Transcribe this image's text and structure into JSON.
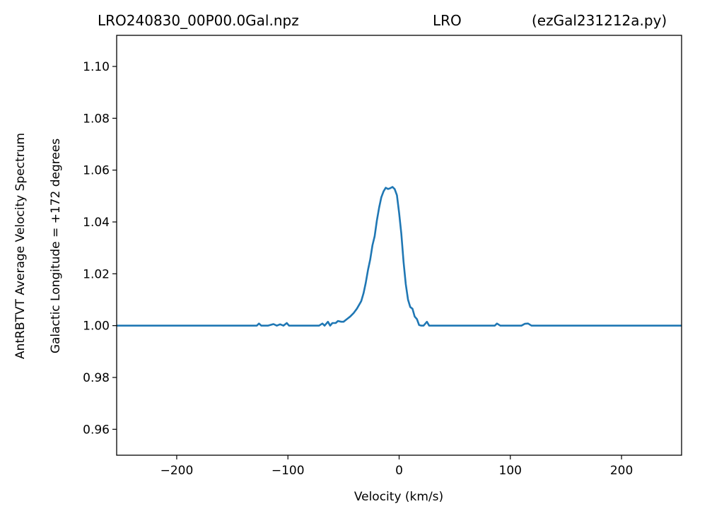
{
  "title": {
    "left": "LRO240830_00P00.0Gal.npz",
    "center": "LRO",
    "right": "(ezGal231212a.py)"
  },
  "chart_data": {
    "type": "line",
    "title": "LRO240830_00P00.0Gal.npz LRO (ezGal231212a.py)",
    "xlabel": "Velocity (km/s)",
    "ylabel": "AntRBTVT Average Velocity Spectrum",
    "ylabel2": "Galactic Longitude = +172 degrees",
    "xlim": [
      -254,
      254
    ],
    "ylim": [
      0.95,
      1.112
    ],
    "xticks": [
      -200,
      -100,
      0,
      100,
      200
    ],
    "xtick_labels": [
      "−200",
      "−100",
      "0",
      "100",
      "200"
    ],
    "yticks": [
      0.96,
      0.98,
      1.0,
      1.02,
      1.04,
      1.06,
      1.08,
      1.1
    ],
    "ytick_labels": [
      "0.96",
      "0.98",
      "1.00",
      "1.02",
      "1.04",
      "1.06",
      "1.08",
      "1.10"
    ],
    "grid": false,
    "line_color": "#1f77b4",
    "series": [
      {
        "x": [
          -254,
          -128,
          -126,
          -124,
          -118,
          -113,
          -110,
          -107,
          -104,
          -101,
          -99,
          -95,
          -72,
          -69,
          -67,
          -64,
          -62,
          -60,
          -57,
          -55,
          -52,
          -50,
          -47,
          -44,
          -41,
          -38,
          -36,
          -34,
          -32,
          -30,
          -28,
          -26,
          -24,
          -22,
          -20,
          -18,
          -16,
          -14,
          -12,
          -10,
          -8,
          -6,
          -4,
          -2,
          0,
          2,
          4,
          6,
          8,
          10,
          12,
          14,
          16,
          18,
          20,
          22,
          25,
          27,
          29,
          32,
          36,
          60,
          86,
          88,
          91,
          110,
          113,
          116,
          119,
          254
        ],
        "y": [
          1.0,
          1.0,
          1.0008,
          1.0,
          1.0,
          1.0006,
          1.0,
          1.0005,
          1.0,
          1.001,
          1.0,
          1.0,
          1.0,
          1.0008,
          1.0,
          1.0015,
          1.0,
          1.001,
          1.001,
          1.0018,
          1.0015,
          1.0015,
          1.0025,
          1.0035,
          1.0048,
          1.0065,
          1.008,
          1.0095,
          1.0125,
          1.0165,
          1.0215,
          1.0255,
          1.031,
          1.0345,
          1.0405,
          1.0455,
          1.0495,
          1.0518,
          1.0532,
          1.0527,
          1.053,
          1.0535,
          1.0527,
          1.0503,
          1.0435,
          1.0355,
          1.0245,
          1.016,
          1.01,
          1.0072,
          1.0065,
          1.0035,
          1.0025,
          1.0002,
          1.0,
          1.0,
          1.0015,
          1.0,
          1.0,
          1.0,
          1.0,
          1.0,
          1.0,
          1.0008,
          1.0,
          1.0,
          1.0007,
          1.0008,
          1.0,
          1.0
        ]
      }
    ]
  }
}
